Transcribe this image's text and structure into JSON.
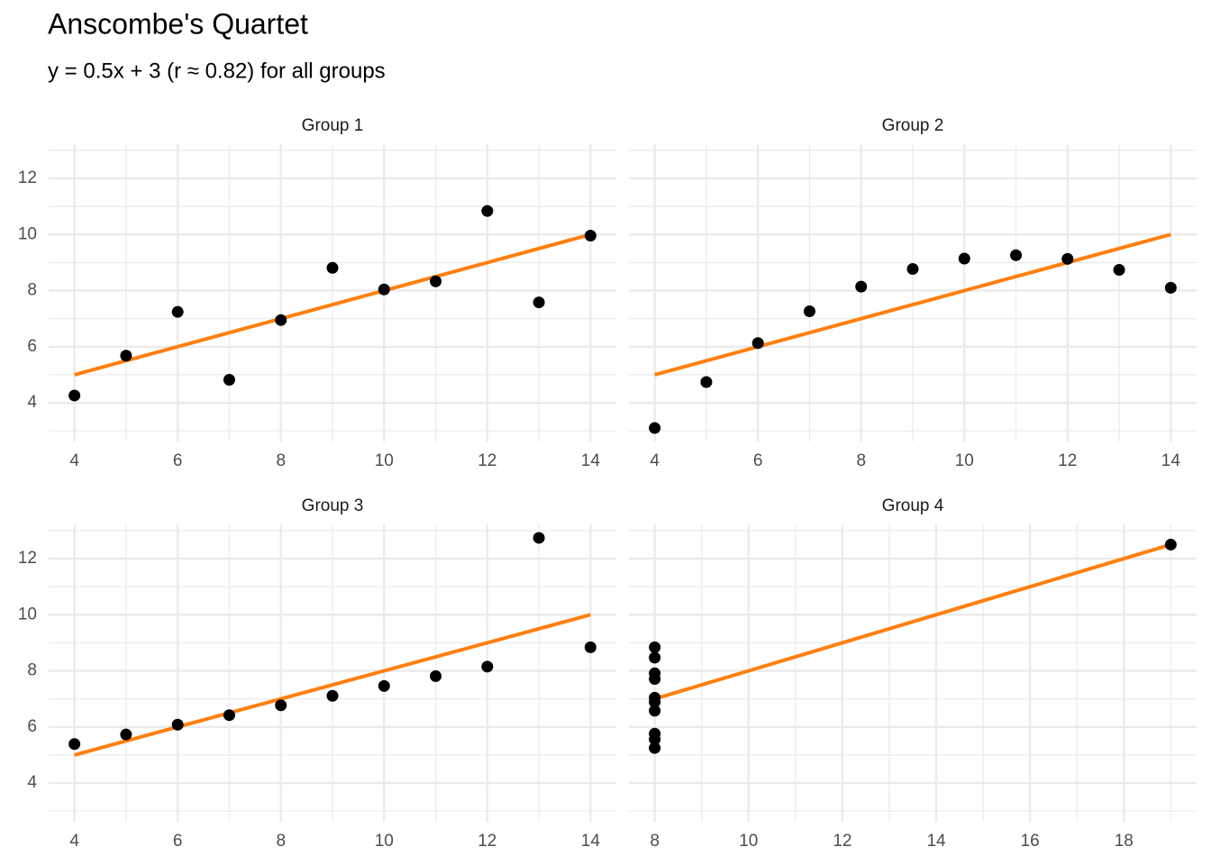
{
  "title": "Anscombe's Quartet",
  "subtitle": "y = 0.5x + 3 (r ≈ 0.82) for all groups",
  "chart_data": [
    {
      "type": "scatter",
      "title": "Group 1",
      "grid": true,
      "xlim": [
        3.5,
        14.5
      ],
      "xticks": [
        4,
        6,
        8,
        10,
        12,
        14
      ],
      "x_minor_ticks": [
        5,
        7,
        9,
        11,
        13
      ],
      "ylim": [
        2.62,
        13.22
      ],
      "yticks": [
        4,
        6,
        8,
        10,
        12
      ],
      "y_minor_ticks": [
        3,
        5,
        7,
        9,
        11,
        13
      ],
      "series": [
        {
          "type": "scatter",
          "color": "#000000",
          "x": [
            10,
            8,
            13,
            9,
            11,
            14,
            6,
            4,
            12,
            7,
            5
          ],
          "values": [
            8.04,
            6.95,
            7.58,
            8.81,
            8.33,
            9.96,
            7.24,
            4.26,
            10.84,
            4.82,
            5.68
          ]
        },
        {
          "type": "line",
          "color": "#ff7f0e",
          "x": [
            4,
            14
          ],
          "values": [
            5,
            10
          ]
        }
      ]
    },
    {
      "type": "scatter",
      "title": "Group 2",
      "grid": true,
      "xlim": [
        3.5,
        14.5
      ],
      "xticks": [
        4,
        6,
        8,
        10,
        12,
        14
      ],
      "x_minor_ticks": [
        5,
        7,
        9,
        11,
        13
      ],
      "ylim": [
        2.62,
        13.22
      ],
      "yticks": [
        4,
        6,
        8,
        10,
        12
      ],
      "y_minor_ticks": [
        3,
        5,
        7,
        9,
        11,
        13
      ],
      "series": [
        {
          "type": "scatter",
          "color": "#000000",
          "x": [
            10,
            8,
            13,
            9,
            11,
            14,
            6,
            4,
            12,
            7,
            5
          ],
          "values": [
            9.14,
            8.14,
            8.74,
            8.77,
            9.26,
            8.1,
            6.13,
            3.1,
            9.13,
            7.26,
            4.74
          ]
        },
        {
          "type": "line",
          "color": "#ff7f0e",
          "x": [
            4,
            14
          ],
          "values": [
            5,
            10
          ]
        }
      ]
    },
    {
      "type": "scatter",
      "title": "Group 3",
      "grid": true,
      "xlim": [
        3.5,
        14.5
      ],
      "xticks": [
        4,
        6,
        8,
        10,
        12,
        14
      ],
      "x_minor_ticks": [
        5,
        7,
        9,
        11,
        13
      ],
      "ylim": [
        2.62,
        13.22
      ],
      "yticks": [
        4,
        6,
        8,
        10,
        12
      ],
      "y_minor_ticks": [
        3,
        5,
        7,
        9,
        11,
        13
      ],
      "series": [
        {
          "type": "scatter",
          "color": "#000000",
          "x": [
            10,
            8,
            13,
            9,
            11,
            14,
            6,
            4,
            12,
            7,
            5
          ],
          "values": [
            7.46,
            6.77,
            12.74,
            7.11,
            7.81,
            8.84,
            6.08,
            5.39,
            8.15,
            6.42,
            5.73
          ]
        },
        {
          "type": "line",
          "color": "#ff7f0e",
          "x": [
            4,
            14
          ],
          "values": [
            5,
            10
          ]
        }
      ]
    },
    {
      "type": "scatter",
      "title": "Group 4",
      "grid": true,
      "xlim": [
        7.45,
        19.55
      ],
      "xticks": [
        8,
        10,
        12,
        14,
        16,
        18
      ],
      "x_minor_ticks": [
        9,
        11,
        13,
        15,
        17,
        19
      ],
      "ylim": [
        2.62,
        13.22
      ],
      "yticks": [
        4,
        6,
        8,
        10,
        12
      ],
      "y_minor_ticks": [
        3,
        5,
        7,
        9,
        11,
        13
      ],
      "series": [
        {
          "type": "scatter",
          "color": "#000000",
          "x": [
            8,
            8,
            8,
            8,
            8,
            8,
            8,
            19,
            8,
            8,
            8
          ],
          "values": [
            6.58,
            5.76,
            7.71,
            8.84,
            8.47,
            7.04,
            5.25,
            12.5,
            5.56,
            7.91,
            6.89
          ]
        },
        {
          "type": "line",
          "color": "#ff7f0e",
          "x": [
            8,
            19
          ],
          "values": [
            7,
            12.5
          ]
        }
      ]
    }
  ]
}
